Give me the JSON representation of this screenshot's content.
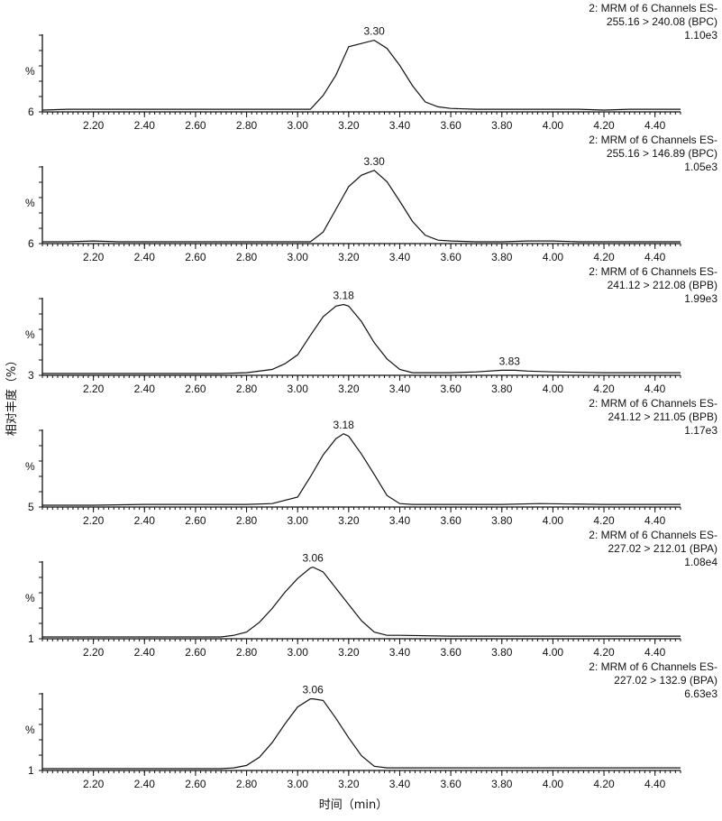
{
  "chart_data": {
    "type": "line",
    "xlabel": "时间（min）",
    "ylabel": "相对丰度（%）",
    "xlim": [
      2.0,
      4.5
    ],
    "xticks": [
      "2.20",
      "2.40",
      "2.60",
      "2.80",
      "3.00",
      "3.20",
      "3.40",
      "3.60",
      "3.80",
      "4.00",
      "4.20",
      "4.40"
    ],
    "panels": [
      {
        "info": [
          "2: MRM of 6 Channels ES-",
          "255.16 > 240.08 (BPC)",
          "1.10e3"
        ],
        "y_axis_label": "%",
        "baseline_label": "6",
        "peaks": [
          {
            "x": 3.3,
            "label": "3.30"
          }
        ],
        "x": [
          2.0,
          2.1,
          2.2,
          2.3,
          2.4,
          2.5,
          2.6,
          2.7,
          2.8,
          2.9,
          3.0,
          3.05,
          3.1,
          3.15,
          3.2,
          3.25,
          3.3,
          3.35,
          3.4,
          3.45,
          3.5,
          3.55,
          3.6,
          3.7,
          3.8,
          3.9,
          4.0,
          4.1,
          4.2,
          4.3,
          4.4,
          4.5
        ],
        "y": [
          0,
          1,
          1,
          1,
          1,
          1,
          1,
          1,
          1,
          1,
          1,
          1,
          18,
          43,
          78,
          82,
          86,
          76,
          55,
          30,
          10,
          4,
          2,
          1,
          1,
          1,
          1,
          1,
          0,
          1,
          1,
          1
        ]
      },
      {
        "info": [
          "2: MRM of 6 Channels ES-",
          "255.16 > 146.89 (BPC)",
          "1.05e3"
        ],
        "y_axis_label": "%",
        "baseline_label": "6",
        "peaks": [
          {
            "x": 3.3,
            "label": "3.30"
          }
        ],
        "x": [
          2.0,
          2.1,
          2.2,
          2.3,
          2.4,
          2.5,
          2.6,
          2.7,
          2.8,
          2.9,
          3.0,
          3.05,
          3.1,
          3.15,
          3.2,
          3.25,
          3.3,
          3.35,
          3.4,
          3.45,
          3.5,
          3.55,
          3.6,
          3.7,
          3.8,
          3.9,
          4.0,
          4.1,
          4.2,
          4.3,
          4.4,
          4.5
        ],
        "y": [
          0,
          0,
          1,
          0,
          0,
          0,
          0,
          0,
          0,
          0,
          0,
          0,
          12,
          40,
          68,
          82,
          88,
          74,
          50,
          25,
          8,
          2,
          1,
          0,
          0,
          1,
          1,
          0,
          0,
          0,
          0,
          0
        ]
      },
      {
        "info": [
          "2: MRM of 6 Channels ES-",
          "241.12 > 212.08 (BPB)",
          "1.99e3"
        ],
        "y_axis_label": "%",
        "baseline_label": "3",
        "peaks": [
          {
            "x": 3.18,
            "label": "3.18"
          },
          {
            "x": 3.83,
            "label": "3.83"
          }
        ],
        "x": [
          2.0,
          2.2,
          2.4,
          2.6,
          2.7,
          2.8,
          2.9,
          2.95,
          3.0,
          3.05,
          3.1,
          3.15,
          3.18,
          3.2,
          3.25,
          3.3,
          3.35,
          3.4,
          3.45,
          3.5,
          3.6,
          3.7,
          3.8,
          3.85,
          3.9,
          4.0,
          4.2,
          4.4,
          4.5
        ],
        "y": [
          0,
          0,
          0,
          0,
          0,
          1,
          5,
          12,
          23,
          47,
          70,
          83,
          85,
          83,
          64,
          38,
          18,
          5,
          1,
          1,
          1,
          2,
          4,
          4,
          3,
          2,
          1,
          1,
          1
        ]
      },
      {
        "info": [
          "2: MRM of 6 Channels ES-",
          "241.12 > 211.05 (BPB)",
          "1.17e3"
        ],
        "y_axis_label": "%",
        "baseline_label": "5",
        "peaks": [
          {
            "x": 3.18,
            "label": "3.18"
          }
        ],
        "x": [
          2.0,
          2.2,
          2.4,
          2.6,
          2.8,
          2.9,
          3.0,
          3.05,
          3.1,
          3.15,
          3.18,
          3.2,
          3.25,
          3.3,
          3.35,
          3.4,
          3.45,
          3.5,
          3.6,
          3.8,
          3.95,
          4.2,
          4.4,
          4.5
        ],
        "y": [
          0,
          0,
          1,
          1,
          1,
          2,
          10,
          35,
          62,
          82,
          88,
          85,
          63,
          38,
          12,
          2,
          1,
          1,
          1,
          1,
          2,
          1,
          1,
          1
        ]
      },
      {
        "info": [
          "2: MRM of 6 Channels ES-",
          "227.02 > 212.01 (BPA)",
          "1.08e4"
        ],
        "y_axis_label": "%",
        "baseline_label": "1",
        "peaks": [
          {
            "x": 3.06,
            "label": "3.06"
          }
        ],
        "x": [
          2.0,
          2.2,
          2.4,
          2.6,
          2.7,
          2.75,
          2.8,
          2.85,
          2.9,
          2.95,
          3.0,
          3.05,
          3.06,
          3.1,
          3.15,
          3.2,
          3.25,
          3.3,
          3.35,
          3.4,
          3.6,
          3.8,
          4.0,
          4.2,
          4.4,
          4.5
        ],
        "y": [
          0,
          0,
          0,
          0,
          0,
          2,
          6,
          18,
          35,
          55,
          72,
          85,
          86,
          80,
          60,
          40,
          20,
          6,
          2,
          2,
          1,
          1,
          1,
          1,
          1,
          1
        ]
      },
      {
        "info": [
          "2: MRM of 6 Channels ES-",
          "227.02 > 132.9 (BPA)",
          "6.63e3"
        ],
        "y_axis_label": "%",
        "baseline_label": "1",
        "peaks": [
          {
            "x": 3.06,
            "label": "3.06"
          }
        ],
        "x": [
          2.0,
          2.2,
          2.4,
          2.6,
          2.7,
          2.75,
          2.8,
          2.85,
          2.9,
          2.95,
          3.0,
          3.05,
          3.06,
          3.1,
          3.15,
          3.2,
          3.25,
          3.3,
          3.35,
          3.4,
          3.6,
          3.8,
          4.0,
          4.2,
          4.4,
          4.5
        ],
        "y": [
          0,
          0,
          0,
          0,
          0,
          1,
          4,
          14,
          32,
          55,
          76,
          86,
          86,
          84,
          62,
          38,
          16,
          3,
          1,
          1,
          1,
          1,
          1,
          1,
          1,
          1
        ]
      }
    ]
  }
}
